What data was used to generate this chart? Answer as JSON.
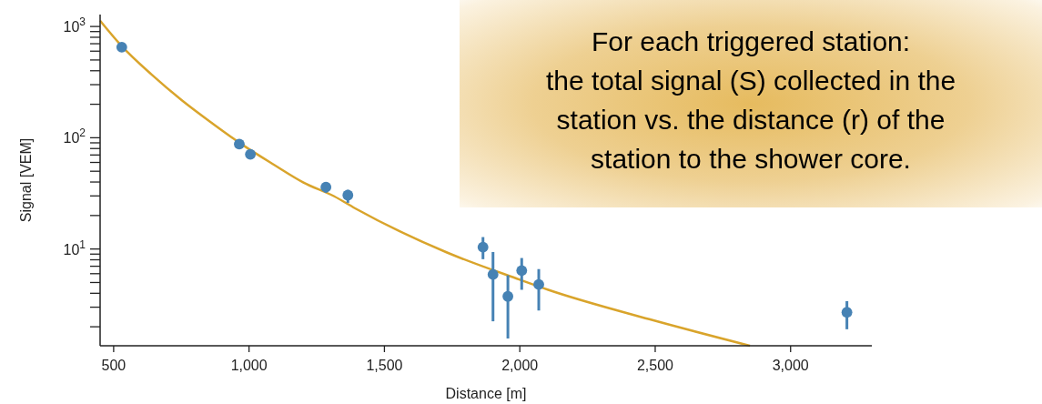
{
  "chart_data": {
    "type": "scatter",
    "xlabel": "Distance [m]",
    "ylabel": "Signal [VEM]",
    "log": "y",
    "xlim": [
      450,
      3300
    ],
    "xticks": [
      {
        "value": 500,
        "label": "500"
      },
      {
        "value": 1000,
        "label": "1,000"
      },
      {
        "value": 1500,
        "label": "1,500"
      },
      {
        "value": 2000,
        "label": "2,000"
      },
      {
        "value": 2500,
        "label": "2,500"
      },
      {
        "value": 3000,
        "label": "3,000"
      }
    ],
    "ylim": [
      1.35,
      1280
    ],
    "yticks": [
      {
        "value": 2,
        "label": null
      },
      {
        "value": 3,
        "label": null
      },
      {
        "value": 4,
        "label": null
      },
      {
        "value": 5,
        "label": null
      },
      {
        "value": 6,
        "label": null
      },
      {
        "value": 7,
        "label": null
      },
      {
        "value": 8,
        "label": null
      },
      {
        "value": 9,
        "label": null
      },
      {
        "value": 10,
        "label": "10$^{1}$"
      },
      {
        "value": 20,
        "label": null
      },
      {
        "value": 30,
        "label": null
      },
      {
        "value": 40,
        "label": null
      },
      {
        "value": 50,
        "label": null
      },
      {
        "value": 60,
        "label": null
      },
      {
        "value": 70,
        "label": null
      },
      {
        "value": 80,
        "label": null
      },
      {
        "value": 90,
        "label": null
      },
      {
        "value": 100,
        "label": "10$^{2}$"
      },
      {
        "value": 200,
        "label": null
      },
      {
        "value": 300,
        "label": null
      },
      {
        "value": 400,
        "label": null
      },
      {
        "value": 500,
        "label": null
      },
      {
        "value": 600,
        "label": null
      },
      {
        "value": 700,
        "label": null
      },
      {
        "value": 800,
        "label": null
      },
      {
        "value": 900,
        "label": null
      },
      {
        "value": 1000,
        "label": "10$^{3}$"
      }
    ],
    "grid": false,
    "marker": "circle",
    "series": [
      {
        "type": "line",
        "marker": "none",
        "color": "#d9a42b",
        "x": [
          450,
          528,
          640,
          752,
          864,
          977,
          1089,
          1201,
          1313,
          1392,
          1731,
          2000,
          2105,
          2478,
          2850
        ],
        "values": [
          1126,
          673,
          370,
          217,
          135,
          86,
          57.8,
          39.6,
          29.9,
          23.2,
          9.3,
          5.3,
          4.3,
          2.34,
          1.35
        ]
      },
      {
        "color": "#4682b4",
        "x": [
          530,
          964,
          1005,
          1284,
          1365,
          1864,
          1901,
          1956,
          2007,
          2070,
          3208
        ],
        "values": [
          652,
          87.7,
          71,
          36,
          30.5,
          10.4,
          5.9,
          3.75,
          6.4,
          4.8,
          2.7
        ],
        "errors": [
          null,
          null,
          null,
          [
            32,
            40
          ],
          [
            26,
            34
          ],
          [
            8.1,
            12.8
          ],
          [
            2.24,
            9.4
          ],
          [
            1.57,
            5.8
          ],
          [
            4.3,
            8.3
          ],
          [
            2.8,
            6.6
          ],
          [
            1.9,
            3.4
          ]
        ]
      }
    ],
    "annotations": [
      "For each triggered station:",
      "the total signal (S) collected in the",
      "station vs. the distance (r) of the",
      "station to the shower core."
    ]
  }
}
